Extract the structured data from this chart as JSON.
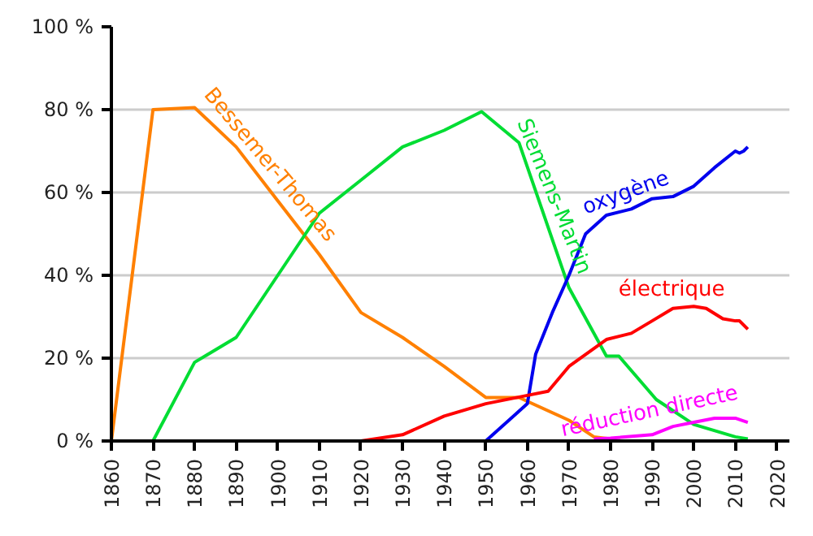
{
  "chart_data": {
    "type": "line",
    "xlim": [
      1860,
      2023
    ],
    "ylim": [
      0,
      100
    ],
    "xticks": [
      1860,
      1870,
      1880,
      1890,
      1900,
      1910,
      1920,
      1930,
      1940,
      1950,
      1960,
      1970,
      1980,
      1990,
      2000,
      2010,
      2020
    ],
    "yticks": [
      {
        "value": 0,
        "label": "0 %"
      },
      {
        "value": 20,
        "label": "20 %"
      },
      {
        "value": 40,
        "label": "40 %"
      },
      {
        "value": 60,
        "label": "60 %"
      },
      {
        "value": 80,
        "label": "80 %"
      },
      {
        "value": 100,
        "label": "100 %"
      }
    ],
    "grid": "y",
    "legend": false,
    "marker": "none",
    "line_style": "solid",
    "series": [
      {
        "name": "Bessemer-Thomas",
        "color": "#ff8000",
        "x": [
          1860,
          1870,
          1880,
          1890,
          1900,
          1910,
          1920,
          1930,
          1940,
          1950,
          1958,
          1970,
          1976,
          1980
        ],
        "values": [
          0,
          80,
          80.5,
          71,
          58,
          45,
          31,
          25,
          18,
          10.5,
          10.5,
          5,
          1,
          0.5
        ]
      },
      {
        "name": "Siemens-Martin",
        "color": "#00dd33",
        "x": [
          1870,
          1880,
          1890,
          1900,
          1910,
          1920,
          1930,
          1940,
          1949,
          1958,
          1970,
          1979,
          1982,
          1991,
          2000,
          2010,
          2013
        ],
        "values": [
          0,
          19,
          25,
          40,
          55,
          63,
          71,
          75,
          79.5,
          72,
          37,
          20.5,
          20.5,
          10,
          4,
          1,
          0.5
        ]
      },
      {
        "name": "oxygène",
        "color": "#0000ee",
        "x": [
          1950,
          1960,
          1962,
          1966,
          1970,
          1974,
          1979,
          1985,
          1990,
          1995,
          2000,
          2005,
          2010,
          2011,
          2012,
          2013
        ],
        "values": [
          0,
          9,
          21,
          31,
          40,
          50,
          54.5,
          56,
          58.5,
          59,
          61.5,
          66,
          70,
          69.5,
          70,
          71
        ]
      },
      {
        "name": "électrique",
        "color": "#ff0000",
        "x": [
          1920,
          1930,
          1940,
          1950,
          1960,
          1965,
          1970,
          1979,
          1985,
          1990,
          1995,
          2000,
          2003,
          2007,
          2010,
          2011,
          2013
        ],
        "values": [
          0,
          1.5,
          6,
          9,
          11,
          12,
          18,
          24.5,
          26,
          29,
          32,
          32.5,
          32,
          29.5,
          29,
          29,
          27
        ]
      },
      {
        "name": "réduction directe",
        "color": "#ff00ff",
        "x": [
          1976,
          1980,
          1990,
          1995,
          2000,
          2005,
          2010,
          2013
        ],
        "values": [
          0.5,
          0.7,
          1.5,
          3.5,
          4.5,
          5.5,
          5.5,
          4.5
        ]
      }
    ]
  }
}
